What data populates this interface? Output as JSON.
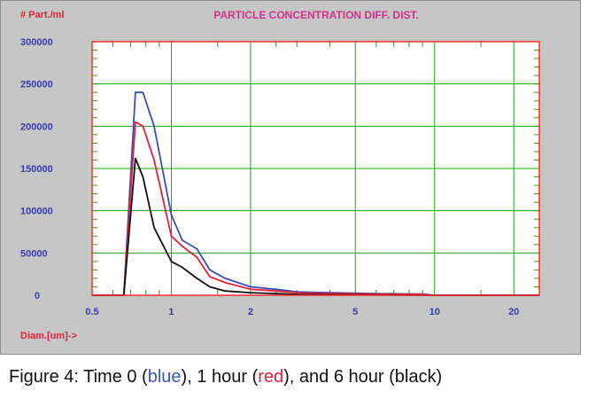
{
  "colors": {
    "blue": "#3b4fb0",
    "red": "#e3213b",
    "black": "#111111",
    "grid": "#1aa31a",
    "frame": "#ff2e2e",
    "background": "#c6c6c6"
  },
  "chart_data": {
    "type": "line",
    "title": "PARTICLE CONCENTRATION DIFF. DIST.",
    "ylabel": "# Part./ml",
    "xlabel": "Diam.[um]->",
    "x_scale": "log",
    "xlim": [
      0.5,
      25
    ],
    "ylim": [
      0,
      300000
    ],
    "x_tick_labels": [
      "0.5",
      "1",
      "2",
      "5",
      "10",
      "20"
    ],
    "x_ticks": [
      0.5,
      1,
      2,
      5,
      10,
      20
    ],
    "y_tick_labels": [
      "300000",
      "250000",
      "200000",
      "150000",
      "100000",
      "50000",
      "0"
    ],
    "y_ticks": [
      300000,
      250000,
      200000,
      150000,
      100000,
      50000,
      0
    ],
    "grid": true,
    "series": [
      {
        "name": "Time 0",
        "color": "blue",
        "x": [
          0.5,
          0.66,
          0.73,
          0.78,
          0.86,
          1.0,
          1.1,
          1.25,
          1.4,
          1.6,
          2.0,
          2.5,
          3.0,
          4.0,
          6.0,
          9.0,
          10.0,
          25.0
        ],
        "y": [
          0,
          0,
          240000,
          240000,
          200000,
          95000,
          65000,
          55000,
          30000,
          20000,
          10000,
          7000,
          4000,
          3000,
          2000,
          1500,
          0,
          0
        ]
      },
      {
        "name": "1 hour",
        "color": "red",
        "x": [
          0.5,
          0.66,
          0.73,
          0.78,
          0.86,
          1.0,
          1.1,
          1.25,
          1.4,
          1.6,
          2.0,
          2.5,
          3.0,
          4.0,
          6.0,
          9.0,
          10.0,
          25.0
        ],
        "y": [
          0,
          0,
          205000,
          200000,
          160000,
          70000,
          58000,
          45000,
          22000,
          15000,
          7000,
          5000,
          3000,
          2000,
          1500,
          1000,
          0,
          0
        ]
      },
      {
        "name": "6 hour",
        "color": "black",
        "x": [
          0.5,
          0.66,
          0.73,
          0.78,
          0.86,
          1.0,
          1.1,
          1.25,
          1.4,
          1.6,
          2.0,
          2.5,
          3.0,
          4.0,
          10.0,
          25.0
        ],
        "y": [
          0,
          0,
          162000,
          140000,
          80000,
          40000,
          33000,
          20000,
          10000,
          5000,
          3000,
          2000,
          1000,
          500,
          0,
          0
        ]
      }
    ]
  },
  "caption": {
    "prefix": "Figure 4: Time 0 (",
    "blue_word": "blue",
    "mid1": "), 1 hour (",
    "red_word": "red",
    "suffix": "), and 6 hour (black)"
  }
}
